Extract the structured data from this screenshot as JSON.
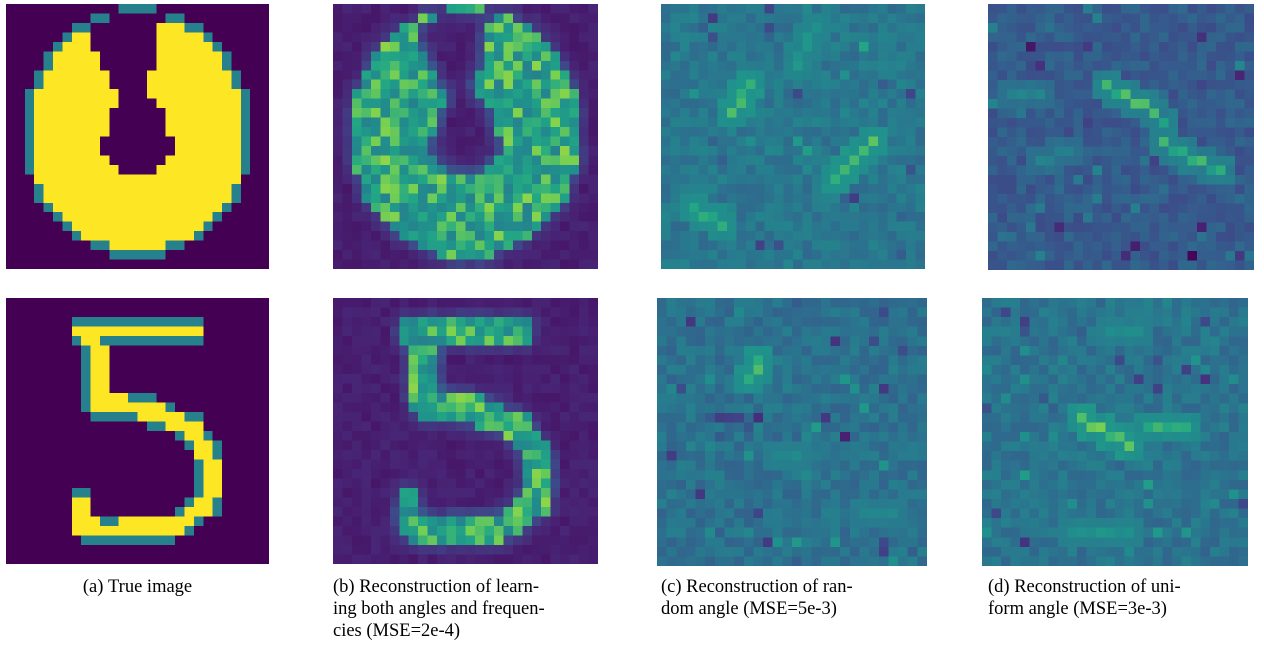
{
  "figure": {
    "colormap": "viridis",
    "captions": {
      "a": {
        "label": "(a)",
        "text": "True image"
      },
      "b": {
        "label": "(b)",
        "lines": [
          "Reconstruction of learn-",
          "ing both angles and frequen-",
          "cies (MSE=2e-4)"
        ]
      },
      "c": {
        "label": "(c)",
        "lines": [
          "Reconstruction of ran-",
          "dom angle (MSE=5e-3)"
        ]
      },
      "d": {
        "label": "(d)",
        "lines": [
          "Reconstruction of uni-",
          "form angle (MSE=3e-3)"
        ]
      }
    },
    "images": [
      {
        "id": "a-top",
        "depicts": "digit 0"
      },
      {
        "id": "b-top",
        "depicts": "digit 0"
      },
      {
        "id": "c-top",
        "depicts": "noise"
      },
      {
        "id": "d-top",
        "depicts": "noise"
      },
      {
        "id": "a-bottom",
        "depicts": "digit 5"
      },
      {
        "id": "b-bottom",
        "depicts": "digit 5"
      },
      {
        "id": "c-bottom",
        "depicts": "noise"
      },
      {
        "id": "d-bottom",
        "depicts": "noise"
      }
    ]
  }
}
